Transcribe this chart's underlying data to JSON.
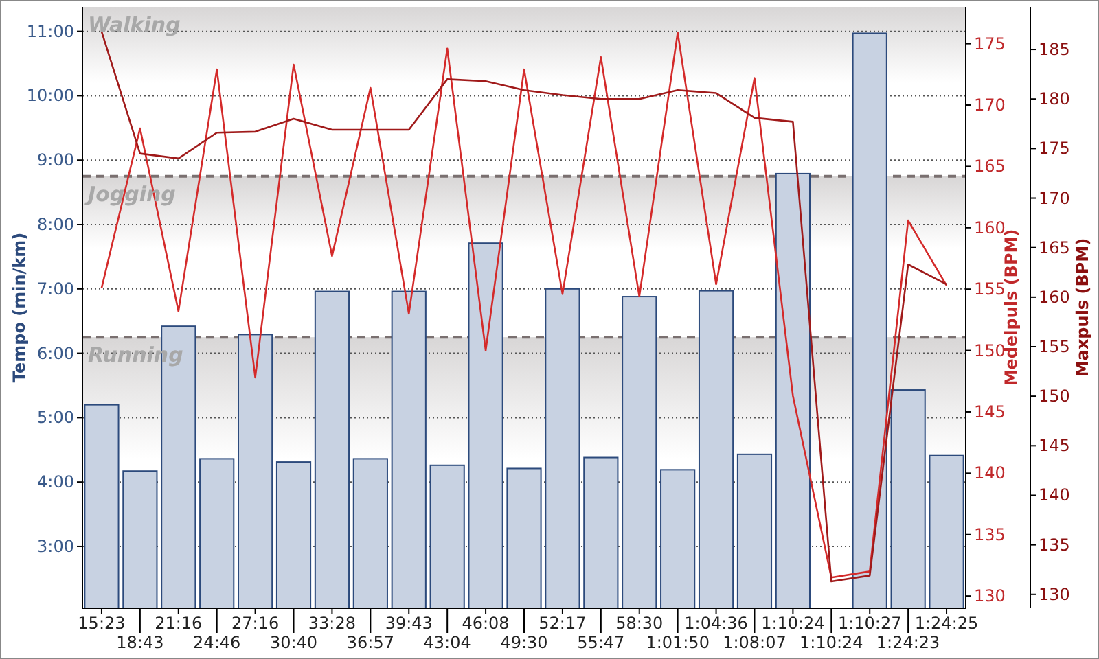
{
  "chart_data": {
    "type": "bar",
    "ylabel": "Tempo (min/km)",
    "y2label": "Medelpuls (BPM)",
    "y3label": "Maxpuls (BPM)",
    "categories": [
      "15:23",
      "18:43",
      "21:16",
      "24:46",
      "27:16",
      "30:40",
      "33:28",
      "36:57",
      "39:43",
      "43:04",
      "46:08",
      "49:30",
      "52:17",
      "55:47",
      "58:30",
      "1:01:50",
      "1:04:36",
      "1:08:07",
      "1:10:24",
      "1:10:24",
      "1:10:27",
      "1:24:23",
      "1:24:25"
    ],
    "series": [
      {
        "color": "#c8d2e2",
        "values": [
          5.2,
          4.17,
          6.42,
          4.36,
          6.29,
          4.31,
          6.96,
          4.36,
          6.96,
          4.26,
          7.71,
          4.21,
          7.0,
          4.38,
          6.88,
          4.19,
          6.97,
          4.43,
          8.79,
          null,
          10.97,
          5.43,
          4.41
        ]
      },
      {
        "type": "line",
        "axis": "y2",
        "color": "#d42a2a",
        "values": [
          155.1,
          168.1,
          153.2,
          172.9,
          147.8,
          173.3,
          157.7,
          171.4,
          153.0,
          174.6,
          150.0,
          172.9,
          154.6,
          173.9,
          154.4,
          175.9,
          155.4,
          172.2,
          146.3,
          131.5,
          132.0,
          160.6,
          155.3
        ]
      },
      {
        "type": "line",
        "axis": "y3",
        "color": "#a01a1a",
        "values": [
          186.8,
          174.5,
          174.0,
          176.6,
          176.7,
          178.0,
          176.9,
          176.9,
          176.9,
          182.0,
          181.8,
          180.9,
          180.4,
          180.0,
          180.0,
          180.9,
          180.6,
          178.1,
          177.7,
          131.3,
          131.9,
          163.3,
          161.3
        ]
      }
    ],
    "ylim": [
      2.04,
      11.38
    ],
    "yticks": [
      {
        "value": 3,
        "label": "3:00"
      },
      {
        "value": 4,
        "label": "4:00"
      },
      {
        "value": 5,
        "label": "5:00"
      },
      {
        "value": 6,
        "label": "6:00"
      },
      {
        "value": 7,
        "label": "7:00"
      },
      {
        "value": 8,
        "label": "8:00"
      },
      {
        "value": 9,
        "label": "9:00"
      },
      {
        "value": 10,
        "label": "10:00"
      },
      {
        "value": 11,
        "label": "11:00"
      }
    ],
    "y2lim": [
      129,
      178
    ],
    "y2ticks": [
      130,
      135,
      140,
      145,
      150,
      155,
      160,
      165,
      170,
      175
    ],
    "y3lim": [
      128.6,
      189.3
    ],
    "y3ticks": [
      130,
      135,
      140,
      145,
      150,
      155,
      160,
      165,
      170,
      175,
      180,
      185
    ],
    "bands": [
      {
        "axis": "y",
        "from": 8.75,
        "to": 11.38,
        "label": "Walking",
        "color": "#d8d6d6"
      },
      {
        "axis": "y",
        "from": 6.25,
        "to": 8.75,
        "label": "Jogging",
        "color": "#d8d6d6"
      },
      {
        "axis": "y",
        "from": 2.04,
        "to": 6.25,
        "label": "Running",
        "color": "#d8d6d6"
      }
    ],
    "ref_lines": [
      {
        "axis": "y",
        "value": 8.75,
        "color": "#7a7070",
        "line_style": "dashed"
      },
      {
        "axis": "y",
        "value": 6.25,
        "color": "#7a7070",
        "line_style": "dashed"
      }
    ],
    "grid": "y",
    "line_style": "solid",
    "marker": "none"
  }
}
